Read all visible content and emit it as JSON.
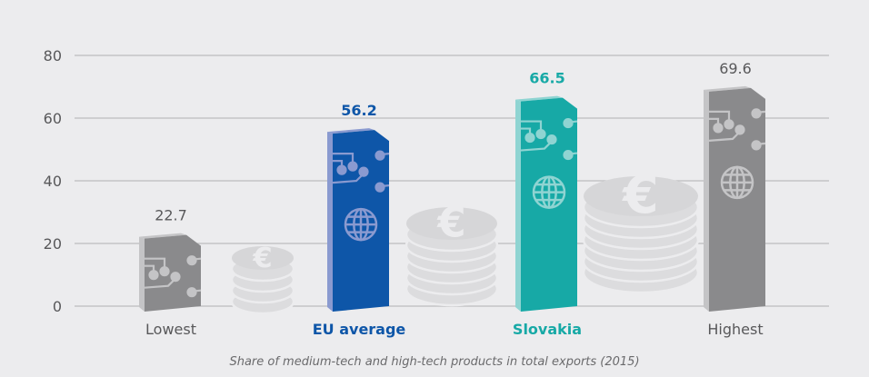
{
  "chart_data": {
    "type": "bar",
    "title": "",
    "caption": "Share of medium-tech and high-tech products in total exports (2015)",
    "xlabel": "",
    "ylabel": "",
    "ylim": [
      0,
      80
    ],
    "yticks": [
      0,
      20,
      40,
      60,
      80
    ],
    "grid": true,
    "categories": [
      "Lowest",
      "EU average",
      "Slovakia",
      "Highest"
    ],
    "values": [
      22.7,
      56.2,
      66.5,
      69.6
    ],
    "value_labels": [
      "22.7",
      "56.2",
      "66.5",
      "69.6"
    ],
    "colors": [
      "#8a8a8c",
      "#0e56a8",
      "#17a9a6",
      "#8a8a8c"
    ],
    "side_colors": [
      "#c4c4c6",
      "#8a9ad0",
      "#8fd4d2",
      "#c4c4c6"
    ],
    "label_colors": [
      "#58585a",
      "#0e56a8",
      "#17a9a6",
      "#58585a"
    ],
    "decoration": {
      "icons": [
        "circuit-icon",
        "globe-icon",
        "euro-coin-stack-icon"
      ]
    }
  }
}
